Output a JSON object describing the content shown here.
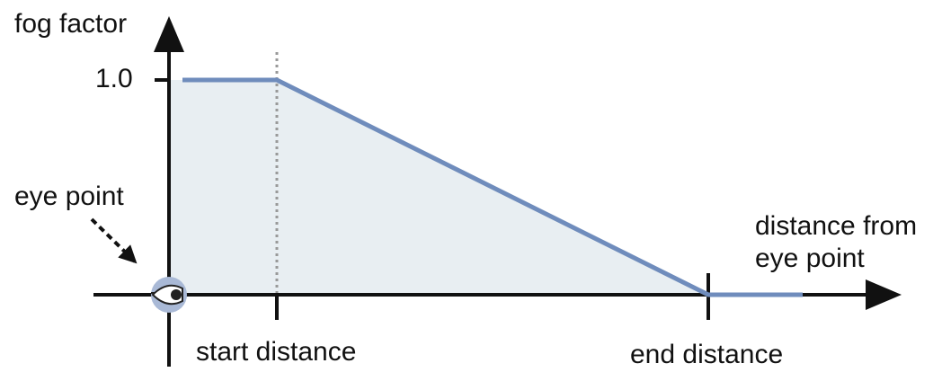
{
  "diagram": {
    "y_axis_label": "fog factor",
    "y_tick_label": "1.0",
    "eye_label": "eye point",
    "x_axis_label_line1": "distance from",
    "x_axis_label_line2": "eye point",
    "start_label": "start distance",
    "end_label": "end distance"
  },
  "colors": {
    "curve": "#6f8cbc",
    "fill": "#e8eef2",
    "axis": "#111111",
    "start_guide": "#999999",
    "eye_disc": "#a9b9d6"
  },
  "icons": {
    "eye": "eye-icon"
  }
}
